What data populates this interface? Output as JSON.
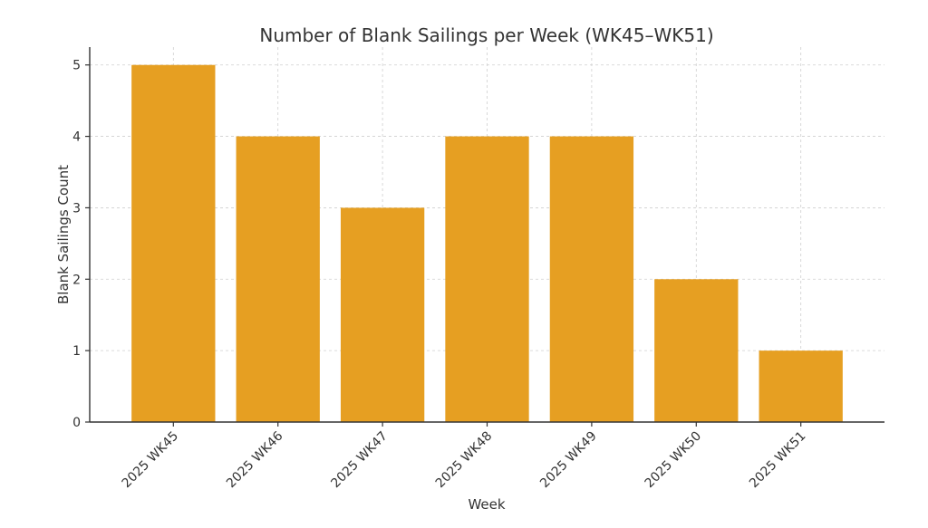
{
  "chart_data": {
    "type": "bar",
    "title": "Number of Blank Sailings per Week (WK45–WK51)",
    "xlabel": "Week",
    "ylabel": "Blank Sailings Count",
    "categories": [
      "2025 WK45",
      "2025 WK46",
      "2025 WK47",
      "2025 WK48",
      "2025 WK49",
      "2025 WK50",
      "2025 WK51"
    ],
    "values": [
      5,
      4,
      3,
      4,
      4,
      2,
      1
    ],
    "ylim": [
      0,
      5.25
    ],
    "yticks": [
      0,
      1,
      2,
      3,
      4,
      5
    ],
    "grid": true,
    "bar_color": "#E69F22"
  }
}
